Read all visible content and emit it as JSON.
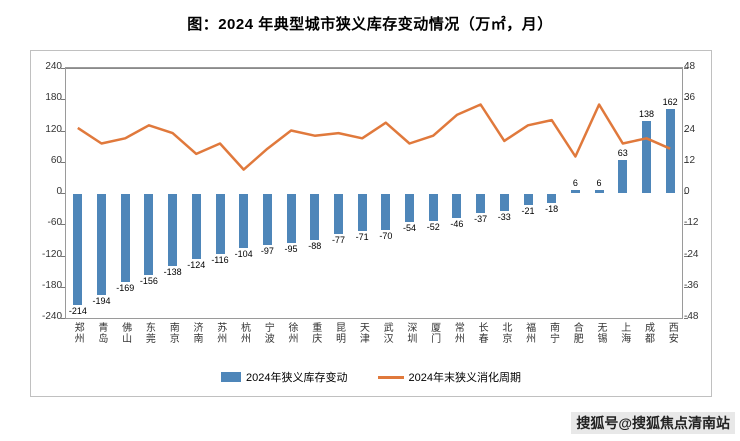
{
  "title": "图：2024 年典型城市狭义库存变动情况（万㎡，月）",
  "watermark": "搜狐号@搜狐焦点清南站",
  "chart_data": {
    "type": "bar+line",
    "title": "图：2024 年典型城市狭义库存变动情况（万㎡，月）",
    "categories": [
      "郑州",
      "青岛",
      "佛山",
      "东莞",
      "南京",
      "济南",
      "苏州",
      "杭州",
      "宁波",
      "徐州",
      "重庆",
      "昆明",
      "天津",
      "武汉",
      "深圳",
      "厦门",
      "常州",
      "长春",
      "北京",
      "福州",
      "南宁",
      "合肥",
      "无锡",
      "上海",
      "成都",
      "西安"
    ],
    "series": [
      {
        "name": "2024年狭义库存变动",
        "type": "bar",
        "axis": "left",
        "color": "#4e86b9",
        "data_labels": true,
        "values": [
          -214,
          -194,
          -169,
          -156,
          -138,
          -124,
          -116,
          -104,
          -97,
          -95,
          -88,
          -77,
          -71,
          -70,
          -54,
          -52,
          -46,
          -37,
          -33,
          -21,
          -18,
          6,
          6,
          63,
          138,
          162
        ]
      },
      {
        "name": "2024年末狭义消化周期",
        "type": "line",
        "axis": "right",
        "color": "#e0793c",
        "data_labels": false,
        "values": [
          25,
          19,
          21,
          26,
          23,
          15,
          19,
          9,
          17,
          24,
          22,
          23,
          21,
          27,
          19,
          22,
          30,
          34,
          20,
          26,
          28,
          14,
          34,
          19,
          21,
          17
        ]
      }
    ],
    "left_axis": {
      "min": -240,
      "max": 240,
      "ticks": [
        240,
        180,
        120,
        60,
        0,
        -60,
        -120,
        -180,
        -240
      ]
    },
    "right_axis": {
      "min": -48,
      "max": 48,
      "ticks": [
        48,
        36,
        24,
        12,
        0,
        -12,
        -24,
        -36,
        -48
      ]
    },
    "legend_position": "bottom",
    "grid": false
  }
}
